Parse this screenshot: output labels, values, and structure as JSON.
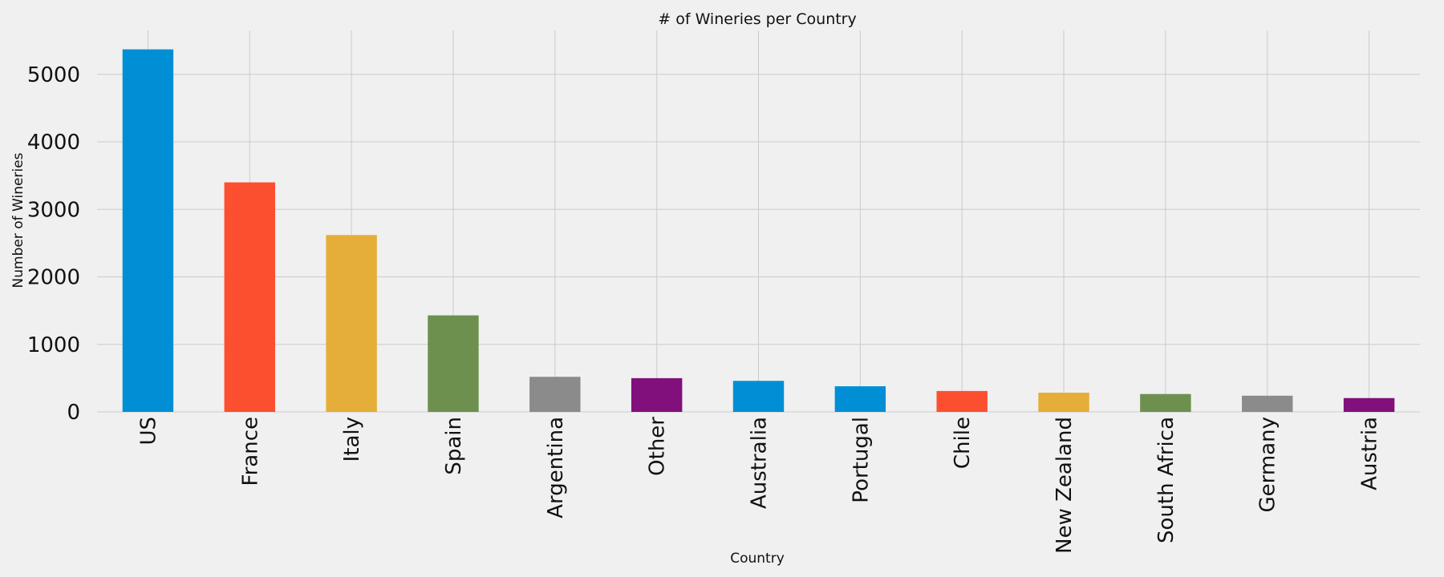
{
  "chart_data": {
    "type": "bar",
    "title": "# of Wineries per Country",
    "xlabel": "Country",
    "ylabel": "Number of Wineries",
    "categories": [
      "US",
      "France",
      "Italy",
      "Spain",
      "Argentina",
      "Other",
      "Australia",
      "Portugal",
      "Chile",
      "New Zealand",
      "South Africa",
      "Germany",
      "Austria"
    ],
    "values": [
      5370,
      3400,
      2620,
      1430,
      520,
      500,
      460,
      380,
      310,
      285,
      265,
      240,
      205
    ],
    "colors": [
      "#008fd5",
      "#fc4f30",
      "#e5ae38",
      "#6d904f",
      "#8b8b8b",
      "#810f7c",
      "#008fd5",
      "#008fd5",
      "#fc4f30",
      "#e5ae38",
      "#6d904f",
      "#8b8b8b",
      "#810f7c"
    ],
    "ylim": [
      0,
      5650
    ],
    "yticks": [
      0,
      1000,
      2000,
      3000,
      4000,
      5000
    ],
    "grid": true,
    "legend": "none"
  }
}
